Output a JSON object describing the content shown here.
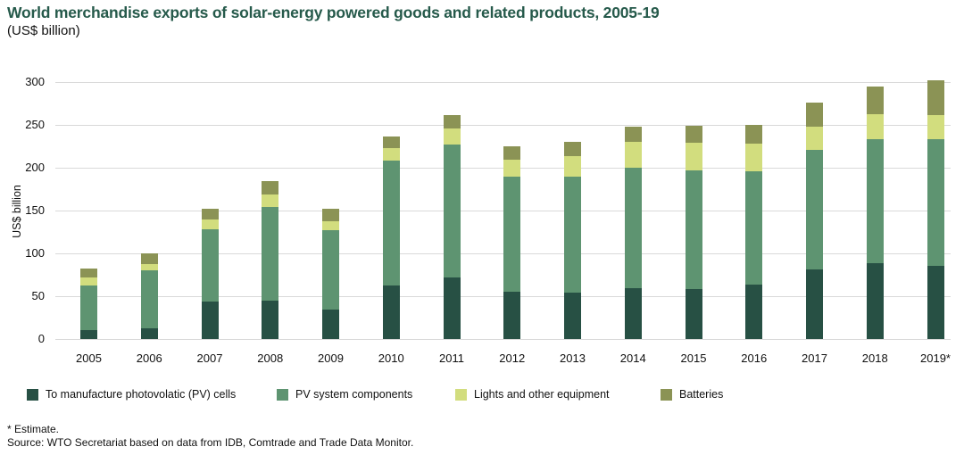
{
  "header": {
    "title": "World merchandise exports of solar-energy powered goods and related products, 2005-19",
    "subtitle": "(US$ billion)"
  },
  "chart_data": {
    "type": "bar",
    "stacked": true,
    "title": "World merchandise exports of solar-energy powered goods and related products, 2005-19",
    "xlabel": "",
    "ylabel": "US$ billion",
    "ylim": [
      0,
      300
    ],
    "ytick_step": 50,
    "grid": true,
    "legend_position": "bottom",
    "categories": [
      "2005",
      "2006",
      "2007",
      "2008",
      "2009",
      "2010",
      "2011",
      "2012",
      "2013",
      "2014",
      "2015",
      "2016",
      "2017",
      "2018",
      "2019*"
    ],
    "series": [
      {
        "key": "pv-cells",
        "name": "To manufacture photovolatic (PV) cells",
        "color": "#275044",
        "values": [
          10,
          13,
          44,
          45,
          34,
          62,
          72,
          55,
          54,
          59,
          58,
          64,
          81,
          89,
          85
        ]
      },
      {
        "key": "pv-system-components",
        "name": "PV system components",
        "color": "#5e9471",
        "values": [
          53,
          67,
          84,
          109,
          93,
          146,
          155,
          135,
          136,
          141,
          139,
          132,
          140,
          144,
          148
        ]
      },
      {
        "key": "lights-other-equipment",
        "name": "Lights and other equipment",
        "color": "#d2dd7e",
        "values": [
          9,
          8,
          12,
          15,
          11,
          15,
          19,
          19,
          24,
          30,
          32,
          32,
          27,
          30,
          29
        ]
      },
      {
        "key": "batteries",
        "name": "Batteries",
        "color": "#8b9355",
        "values": [
          10,
          12,
          12,
          15,
          14,
          14,
          16,
          16,
          16,
          18,
          20,
          22,
          28,
          32,
          40
        ]
      }
    ],
    "totals": [
      82,
      100,
      152,
      184,
      152,
      237,
      262,
      225,
      230,
      248,
      249,
      250,
      276,
      295,
      302
    ]
  },
  "footnotes": {
    "estimate": "* Estimate.",
    "source": "Source: WTO Secretariat based on data from IDB, Comtrade and Trade Data Monitor."
  }
}
